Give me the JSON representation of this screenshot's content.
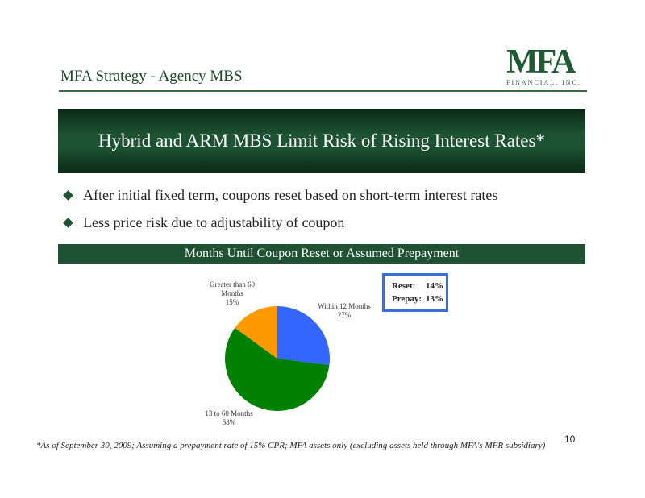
{
  "header": {
    "section_title": "MFA Strategy - Agency MBS"
  },
  "logo": {
    "letters": "MFA",
    "subtitle": "FINANCIAL, INC."
  },
  "banner": {
    "title": "Hybrid and ARM MBS Limit Risk of Rising Interest Rates*"
  },
  "bullets": [
    "After initial fixed term, coupons reset based on short-term interest rates",
    "Less price risk due to adjustability of coupon"
  ],
  "subheader": "Months Until Coupon Reset or Assumed Prepayment",
  "reset_box": {
    "rows": [
      {
        "key": "Reset:",
        "value": "14%"
      },
      {
        "key": "Prepay:",
        "value": "13%"
      }
    ],
    "border_color": "#3a6fd8"
  },
  "chart_data": {
    "type": "pie",
    "title": "",
    "slices": [
      {
        "label": "Within 12 Months",
        "value": 27,
        "display": "27%",
        "color": "#3366ff"
      },
      {
        "label": "13 to 60 Months",
        "value": 58,
        "display": "58%",
        "color": "#008000"
      },
      {
        "label": "Greater than 60 Months",
        "value": 15,
        "display": "15%",
        "color": "#ff9900"
      }
    ]
  },
  "page_number": "10",
  "footnote": "*As of September 30, 2009; Assuming a prepayment rate of 15% CPR; MFA assets only (excluding assets held through MFA's MFR subsidiary)",
  "colors": {
    "brand_green": "#1d5232"
  }
}
